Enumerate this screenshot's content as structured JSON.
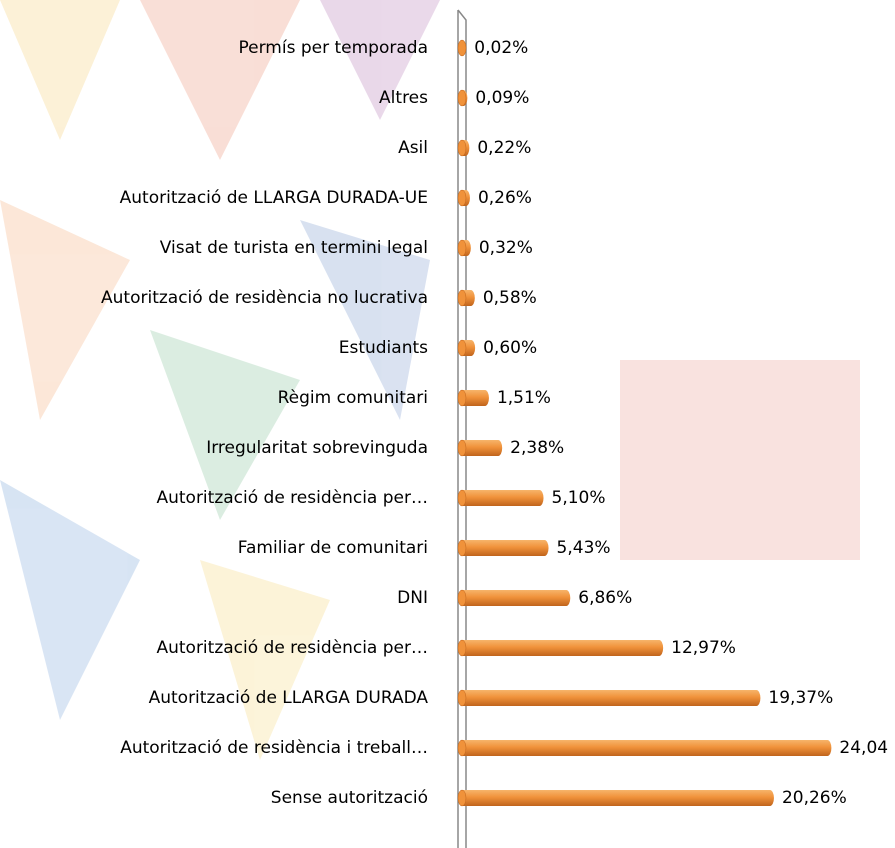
{
  "chart_data": {
    "type": "bar",
    "orientation": "horizontal",
    "color": "#f0923a",
    "categories": [
      "Permís per temporada",
      "Altres",
      "Asil",
      "Autorització de LLARGA DURADA-UE",
      "Visat de turista en termini legal",
      "Autorització de residència no lucrativa",
      "Estudiants",
      "Règim comunitari",
      "Irregularitat sobrevinguda",
      "Autorització de residència per…",
      "Familiar de comunitari",
      "DNI",
      "Autorització de residència per…",
      "Autorització de LLARGA DURADA",
      "Autorització de residència i treball…",
      "Sense autorització"
    ],
    "values": [
      0.02,
      0.09,
      0.22,
      0.26,
      0.32,
      0.58,
      0.6,
      1.51,
      2.38,
      5.1,
      5.43,
      6.86,
      12.97,
      19.37,
      24.04,
      20.26
    ],
    "value_labels": [
      "0,02%",
      "0,09%",
      "0,22%",
      "0,26%",
      "0,32%",
      "0,58%",
      "0,60%",
      "1,51%",
      "2,38%",
      "5,10%",
      "5,43%",
      "6,86%",
      "12,97%",
      "19,37%",
      "24,04",
      "20,26%"
    ]
  }
}
